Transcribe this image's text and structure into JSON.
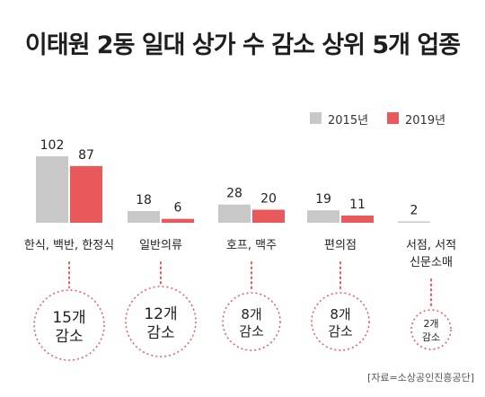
{
  "title": "이태원 2동 일대 상가 수 감소 상위 5개 업종",
  "legend": [
    {
      "label": "2015년",
      "color": "#c8c8c8"
    },
    {
      "label": "2019년",
      "color": "#e9585a"
    }
  ],
  "source": "[자료=소상공인진흥공단]",
  "chart_data": {
    "type": "bar",
    "title": "이태원 2동 일대 상가 수 감소 상위 5개 업종",
    "categories": [
      [
        "한식, 백반, 한정식"
      ],
      [
        "일반의류"
      ],
      [
        "호프, 맥주"
      ],
      [
        "편의점"
      ],
      [
        "서점, 서적",
        "신문소매"
      ]
    ],
    "series": [
      {
        "name": "2015년",
        "color": "#c8c8c8",
        "values": [
          102,
          18,
          28,
          19,
          2
        ]
      },
      {
        "name": "2019년",
        "color": "#e9585a",
        "values": [
          87,
          6,
          20,
          11,
          null
        ]
      }
    ],
    "value_labels": [
      [
        "102",
        "87"
      ],
      [
        "18",
        "6"
      ],
      [
        "28",
        "20"
      ],
      [
        "19",
        "11"
      ],
      [
        "2",
        ""
      ]
    ],
    "decrease_labels": [
      [
        "15개",
        "감소"
      ],
      [
        "12개",
        "감소"
      ],
      [
        "8개",
        "감소"
      ],
      [
        "8개",
        "감소"
      ],
      [
        "2개",
        "감소"
      ]
    ],
    "ylim": [
      0,
      102
    ],
    "legend_position": "top-right",
    "grid": false
  }
}
